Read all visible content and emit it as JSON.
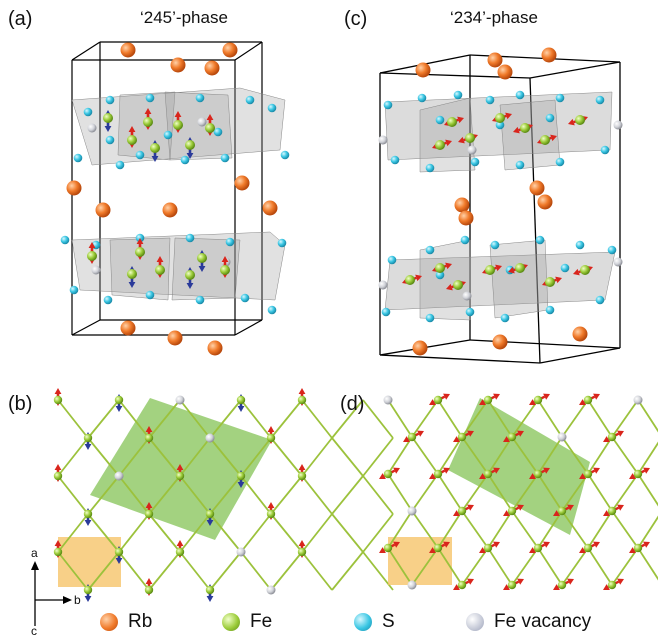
{
  "panels": {
    "a": {
      "label": "(a)",
      "title": "‘245’-phase"
    },
    "b": {
      "label": "(b)"
    },
    "c": {
      "label": "(c)",
      "title": "‘234’-phase"
    },
    "d": {
      "label": "(d)"
    }
  },
  "axes": {
    "a": "a",
    "b": "b",
    "c": "c"
  },
  "legend": [
    {
      "label": "Rb",
      "color": "#f07a2a"
    },
    {
      "label": "Fe",
      "color": "#9ccc3a"
    },
    {
      "label": "S",
      "color": "#39c6e3"
    },
    {
      "label": "Fe vacancy",
      "color": "#c4c8d6"
    }
  ],
  "colors": {
    "rb": "#f07a2a",
    "fe": "#9ccc3a",
    "s": "#39c6e3",
    "vacancy": "#c8c8c8",
    "spin_up": "#d9251c",
    "spin_down": "#2a3a9a",
    "bond": "#9cc23c",
    "magnetic_cell": "#7cbf4a",
    "unit_cell": "#f5c060",
    "polyhedra": "#9a9a9a"
  }
}
